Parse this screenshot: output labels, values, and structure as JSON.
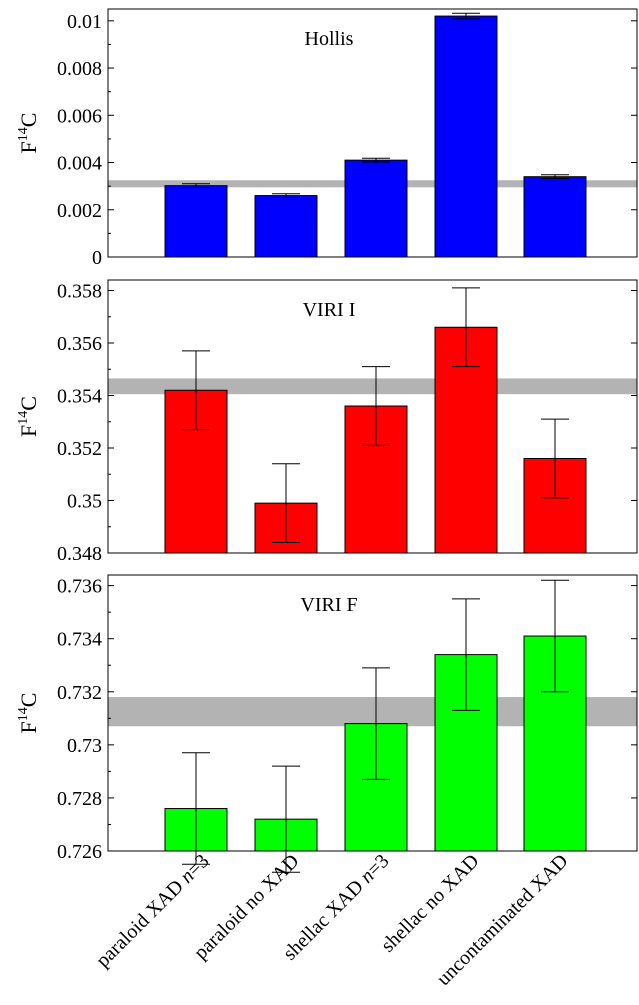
{
  "chart_data": [
    {
      "type": "bar",
      "title": "Hollis",
      "ylabel_main": "F",
      "ylabel_sup": "14",
      "ylabel_tail": "C",
      "ylim": [
        0,
        0.0105
      ],
      "yticks": [
        0,
        0.002,
        0.004,
        0.006,
        0.008,
        0.01
      ],
      "ytick_labels": [
        "0",
        "0.002",
        "0.004",
        "0.006",
        "0.008",
        "0.01"
      ],
      "values": [
        0.00302,
        0.0026,
        0.0041,
        0.0102,
        0.0034
      ],
      "errors": [
        8e-05,
        8e-05,
        8e-05,
        0.00012,
        8e-05
      ],
      "band": [
        0.00295,
        0.00325
      ],
      "color": "#0000ff"
    },
    {
      "type": "bar",
      "title": "VIRI I",
      "ylabel_main": "F",
      "ylabel_sup": "14",
      "ylabel_tail": "C",
      "ylim": [
        0.348,
        0.3584
      ],
      "yticks": [
        0.348,
        0.35,
        0.352,
        0.354,
        0.356,
        0.358
      ],
      "ytick_labels": [
        "0.348",
        "0.35",
        "0.352",
        "0.354",
        "0.356",
        "0.358"
      ],
      "values": [
        0.3542,
        0.3499,
        0.3536,
        0.3566,
        0.3516
      ],
      "errors": [
        0.0015,
        0.0015,
        0.0015,
        0.0015,
        0.0015
      ],
      "band": [
        0.35405,
        0.35465
      ],
      "color": "#ff0000"
    },
    {
      "type": "bar",
      "title": "VIRI F",
      "ylabel_main": "F",
      "ylabel_sup": "14",
      "ylabel_tail": "C",
      "ylim": [
        0.726,
        0.7364
      ],
      "yticks": [
        0.726,
        0.728,
        0.73,
        0.732,
        0.734,
        0.736
      ],
      "ytick_labels": [
        "0.726",
        "0.728",
        "0.73",
        "0.732",
        "0.734",
        "0.736"
      ],
      "values": [
        0.7276,
        0.7272,
        0.7308,
        0.7334,
        0.7341
      ],
      "errors": [
        0.0021,
        0.002,
        0.0021,
        0.0021,
        0.0021
      ],
      "band": [
        0.7307,
        0.7318
      ],
      "color": "#00ff00"
    }
  ],
  "categories": [
    {
      "pre": "paraloid XAD ",
      "italic": "n",
      "post": "=3"
    },
    {
      "pre": "paraloid no XAD",
      "italic": "",
      "post": ""
    },
    {
      "pre": "shellac XAD ",
      "italic": "n",
      "post": "=3"
    },
    {
      "pre": "shellac no XAD",
      "italic": "",
      "post": ""
    },
    {
      "pre": "uncontaminated XAD",
      "italic": "",
      "post": ""
    }
  ]
}
